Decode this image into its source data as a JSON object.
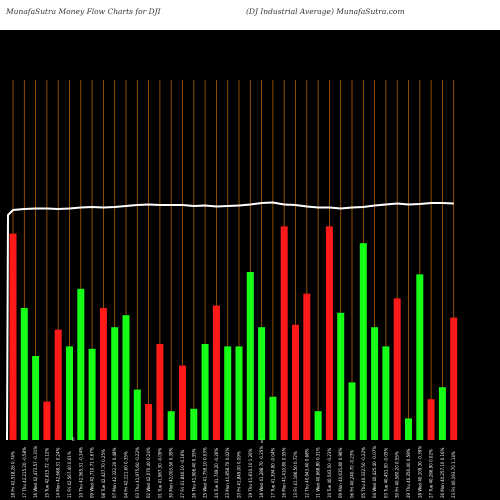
{
  "header": {
    "left_title": "MunafaSutra  Money Flow  Charts for DJI",
    "right_title": "(DJ Industrial Average) MunafaSutra.com"
  },
  "colors": {
    "background": "#000000",
    "header_bg": "#ffffff",
    "grid": "#b35f00",
    "up": "#16ff16",
    "down": "#ff1a1a",
    "line": "#ffffff"
  },
  "chart_data": {
    "type": "bar",
    "title": "MunafaSutra  Money Flow  Charts for DJI",
    "subtitle": "(DJ Industrial Average) MunafaSutra.com",
    "value_range": [
      0,
      100
    ],
    "grid": true,
    "bars": [
      {
        "label": "18 Fri 42,518.26 0.74%",
        "value": 86,
        "dir": "down"
      },
      {
        "label": "17 Thu 42,215.20 -0.58%",
        "value": 55,
        "dir": "up"
      },
      {
        "label": "16 Wed 42,473.57 -0.31%",
        "value": 35,
        "dir": "up"
      },
      {
        "label": "15 Tue 42,615.72 -0.12%",
        "value": 16,
        "dir": "down"
      },
      {
        "label": "14 Mon 42,668.31 0.24%",
        "value": 46,
        "dir": "down"
      },
      {
        "label": "11 Fri 42,567.40 0.01%",
        "value": 39,
        "dir": "up"
      },
      {
        "label": "10 Thu 42,565.31 -0.34%",
        "value": 63,
        "dir": "up"
      },
      {
        "label": "09 Wed 42,710.71 0.67%",
        "value": 38,
        "dir": "up"
      },
      {
        "label": "08 Tue 42,427.70 0.25%",
        "value": 55,
        "dir": "down"
      },
      {
        "label": "07 Mon 42,322.20 0.48%",
        "value": 47,
        "dir": "up"
      },
      {
        "label": "04 Fri 42,121.60 0.35%",
        "value": 52,
        "dir": "up"
      },
      {
        "label": "03 Thu 41,975.60 -0.22%",
        "value": 21,
        "dir": "up"
      },
      {
        "label": "02 Wed 42,070.40 0.24%",
        "value": 15,
        "dir": "down"
      },
      {
        "label": "01 Tue 41,967.30 -0.09%",
        "value": 40,
        "dir": "down"
      },
      {
        "label": "30 Mon 42,003.50 0.39%",
        "value": 12,
        "dir": "up"
      },
      {
        "label": "27 Fri 41,840.10 -0.16%",
        "value": 31,
        "dir": "down"
      },
      {
        "label": "26 Thu 41,906.40 0.35%",
        "value": 13,
        "dir": "up"
      },
      {
        "label": "25 Wed 41,759.10 0.03%",
        "value": 40,
        "dir": "up"
      },
      {
        "label": "24 Tue 41,749.20 -0.26%",
        "value": 56,
        "dir": "down"
      },
      {
        "label": "23 Mon 41,858.70 0.02%",
        "value": 39,
        "dir": "up"
      },
      {
        "label": "20 Fri 41,849.00 0.09%",
        "value": 39,
        "dir": "up"
      },
      {
        "label": "19 Thu 41,810.10 1.26%",
        "value": 70,
        "dir": "up"
      },
      {
        "label": "18 Wed 41,288.70 -0.25%",
        "value": 47,
        "dir": "up"
      },
      {
        "label": "17 Tue 41,394.90 -0.04%",
        "value": 18,
        "dir": "up"
      },
      {
        "label": "16 Mon 41,410.80 0.55%",
        "value": 89,
        "dir": "down"
      },
      {
        "label": "13 Fri 41,186.50 0.72%",
        "value": 48,
        "dir": "down"
      },
      {
        "label": "12 Thu 40,943.40 0.68%",
        "value": 61,
        "dir": "down"
      },
      {
        "label": "11 Wed 40,668.80 0.31%",
        "value": 12,
        "dir": "up"
      },
      {
        "label": "10 Tue 40,543.50 -0.23%",
        "value": 89,
        "dir": "down"
      },
      {
        "label": "09 Mon 40,635.80 0.98%",
        "value": 53,
        "dir": "up"
      },
      {
        "label": "06 Fri 40,240.70 -0.23%",
        "value": 24,
        "dir": "up"
      },
      {
        "label": "05 Thu 40,332.50 -0.22%",
        "value": 82,
        "dir": "up"
      },
      {
        "label": "04 Wed 40,425.40 -0.07%",
        "value": 47,
        "dir": "up"
      },
      {
        "label": "03 Tue 40,451.00 -0.05%",
        "value": 39,
        "dir": "up"
      },
      {
        "label": "30 Fri 40,580.20 0.55%",
        "value": 59,
        "dir": "down"
      },
      {
        "label": "29 Thu 40,350.40 0.59%",
        "value": 9,
        "dir": "up"
      },
      {
        "label": "28 Wed 40,109.30 -0.39%",
        "value": 69,
        "dir": "up"
      },
      {
        "label": "27 Tue 40,266.90 0.02%",
        "value": 17,
        "dir": "down"
      },
      {
        "label": "26 Mon 40,257.10 0.16%",
        "value": 22,
        "dir": "up"
      },
      {
        "label": "23 Fri 40,193.70 1.14%",
        "value": 51,
        "dir": "down"
      }
    ],
    "price_line": [
      80,
      81,
      81.5,
      81.5,
      81,
      81.5,
      82.5,
      83,
      82.5,
      83,
      84,
      85,
      85.5,
      85,
      85,
      85,
      84,
      84.5,
      83.5,
      84,
      84.5,
      85.5,
      87,
      87.5,
      85.5,
      85,
      83.5,
      82.5,
      82.5,
      81.5,
      82.5,
      83,
      84.5,
      85.5,
      86.5,
      85.5,
      86,
      87,
      87,
      86.5
    ],
    "mid_label": "0"
  }
}
